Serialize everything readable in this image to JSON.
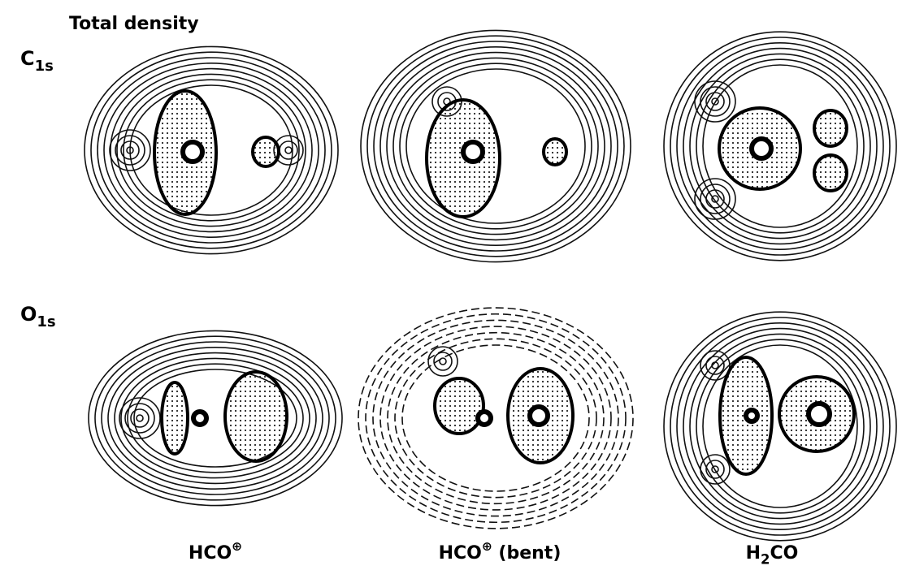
{
  "title": "Total density",
  "row_labels": [
    {
      "parts": [
        {
          "text": "C"
        },
        {
          "text": "1s",
          "style": "sub"
        }
      ]
    },
    {
      "parts": [
        {
          "text": "O"
        },
        {
          "text": "1s",
          "style": "sub"
        }
      ]
    }
  ],
  "column_labels": [
    {
      "parts": [
        {
          "text": "HCO"
        },
        {
          "text": "⊕",
          "style": "sup"
        }
      ]
    },
    {
      "parts": [
        {
          "text": "HCO"
        },
        {
          "text": "⊕",
          "style": "sup"
        },
        {
          "text": " (bent)"
        }
      ]
    },
    {
      "parts": [
        {
          "text": "H"
        },
        {
          "text": "2",
          "style": "sub"
        },
        {
          "text": "CO"
        }
      ]
    }
  ]
}
